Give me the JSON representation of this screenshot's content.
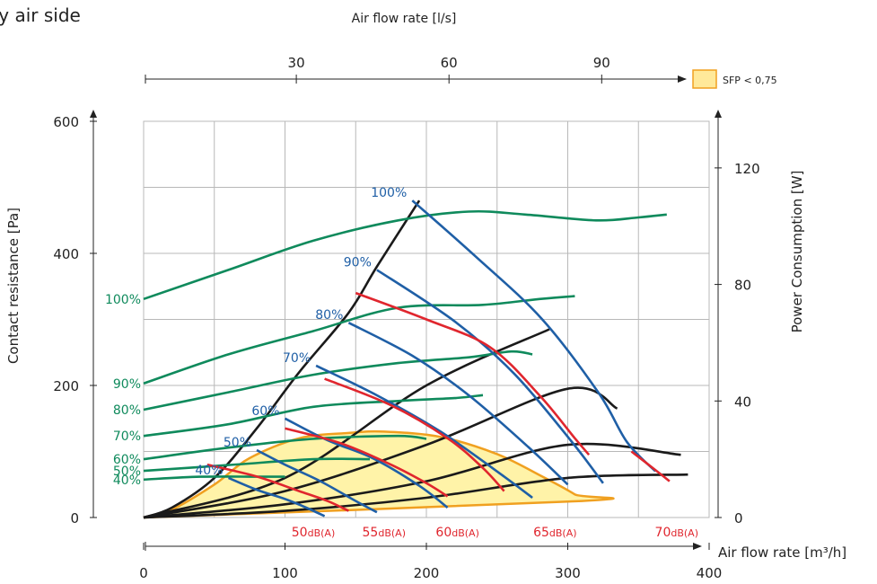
{
  "chart_data": {
    "type": "line",
    "title": "ply air side",
    "xlabel": "Air flow rate [m³/h]",
    "x_ticks": [
      "0",
      "100",
      "200",
      "300",
      "400"
    ],
    "xlim": [
      0,
      400
    ],
    "top_axis_label": "Air flow rate [l/s]",
    "top_ticks": [
      "30",
      "60",
      "90"
    ],
    "top_tick_values": [
      30,
      60,
      90
    ],
    "ylabel": "Contact resistance [Pa]",
    "y_ticks": [
      "0",
      "200",
      "400",
      "600"
    ],
    "ylim": [
      0,
      600
    ],
    "y2label": "Power Consumption [W]",
    "y2_ticks": [
      "0",
      "40",
      "80",
      "120"
    ],
    "y2lim": [
      0,
      136
    ],
    "grid": true,
    "legend": {
      "label": "SFP < 0,75",
      "color": "#ffe99a",
      "edge": "#f0a020",
      "position": "top-right"
    },
    "colors": {
      "pressure": "#1f5fa6",
      "power": "#0f8a5c",
      "noise": "#e0262e",
      "system": "#1a1a1a",
      "sfp_fill": "#fff3a8",
      "sfp_edge": "#f0a020"
    },
    "sfp_region": [
      [
        0,
        0
      ],
      [
        20,
        12
      ],
      [
        50,
        50
      ],
      [
        75,
        90
      ],
      [
        110,
        120
      ],
      [
        145,
        128
      ],
      [
        170,
        130
      ],
      [
        210,
        122
      ],
      [
        250,
        96
      ],
      [
        282,
        62
      ],
      [
        305,
        35
      ],
      [
        310,
        25
      ],
      [
        0,
        0
      ]
    ],
    "pressure_series": [
      {
        "name": "100%",
        "points": [
          [
            190,
            480
          ],
          [
            235,
            395
          ],
          [
            282,
            300
          ],
          [
            322,
            188
          ],
          [
            342,
            114
          ],
          [
            362,
            70
          ]
        ]
      },
      {
        "name": "90%",
        "points": [
          [
            165,
            375
          ],
          [
            220,
            297
          ],
          [
            262,
            218
          ],
          [
            302,
            117
          ],
          [
            325,
            52
          ]
        ]
      },
      {
        "name": "80%",
        "points": [
          [
            145,
            295
          ],
          [
            190,
            245
          ],
          [
            230,
            185
          ],
          [
            272,
            107
          ],
          [
            300,
            50
          ]
        ]
      },
      {
        "name": "70%",
        "points": [
          [
            122,
            230
          ],
          [
            165,
            185
          ],
          [
            210,
            130
          ],
          [
            255,
            62
          ],
          [
            275,
            30
          ]
        ]
      },
      {
        "name": "60%",
        "points": [
          [
            100,
            150
          ],
          [
            130,
            117
          ],
          [
            162,
            90
          ],
          [
            195,
            48
          ],
          [
            215,
            15
          ]
        ]
      },
      {
        "name": "50%",
        "points": [
          [
            80,
            102
          ],
          [
            100,
            80
          ],
          [
            125,
            55
          ],
          [
            150,
            25
          ],
          [
            165,
            8
          ]
        ]
      },
      {
        "name": "40%",
        "points": [
          [
            60,
            60
          ],
          [
            80,
            42
          ],
          [
            100,
            28
          ],
          [
            115,
            15
          ],
          [
            128,
            2
          ]
        ]
      }
    ],
    "power_series": [
      {
        "name": "100%",
        "points": [
          [
            0,
            75
          ],
          [
            60,
            85
          ],
          [
            120,
            95
          ],
          [
            180,
            102
          ],
          [
            230,
            105
          ],
          [
            270,
            104
          ],
          [
            320,
            102
          ],
          [
            350,
            103
          ],
          [
            370,
            104
          ]
        ]
      },
      {
        "name": "90%",
        "points": [
          [
            0,
            46
          ],
          [
            60,
            56
          ],
          [
            120,
            64
          ],
          [
            180,
            72
          ],
          [
            240,
            73
          ],
          [
            280,
            75
          ],
          [
            305,
            76
          ]
        ]
      },
      {
        "name": "80%",
        "points": [
          [
            0,
            37
          ],
          [
            60,
            43
          ],
          [
            120,
            49
          ],
          [
            180,
            53
          ],
          [
            230,
            55
          ],
          [
            260,
            57
          ],
          [
            275,
            56
          ]
        ]
      },
      {
        "name": "70%",
        "points": [
          [
            0,
            28
          ],
          [
            60,
            32
          ],
          [
            120,
            38
          ],
          [
            180,
            40
          ],
          [
            220,
            41
          ],
          [
            240,
            42
          ]
        ]
      },
      {
        "name": "60%",
        "points": [
          [
            0,
            20
          ],
          [
            60,
            24
          ],
          [
            120,
            27
          ],
          [
            180,
            28
          ],
          [
            200,
            27
          ]
        ]
      },
      {
        "name": "50%",
        "points": [
          [
            0,
            16
          ],
          [
            60,
            18
          ],
          [
            120,
            20
          ],
          [
            160,
            20
          ]
        ]
      },
      {
        "name": "40%",
        "points": [
          [
            0,
            13
          ],
          [
            40,
            14
          ],
          [
            80,
            14
          ],
          [
            100,
            14
          ]
        ]
      }
    ],
    "noise_series": [
      {
        "name": "50dB(A)",
        "points": [
          [
            45,
            80
          ],
          [
            80,
            62
          ],
          [
            110,
            40
          ],
          [
            130,
            25
          ],
          [
            145,
            10
          ]
        ]
      },
      {
        "name": "55dB(A)",
        "points": [
          [
            100,
            135
          ],
          [
            140,
            112
          ],
          [
            175,
            80
          ],
          [
            200,
            52
          ],
          [
            215,
            32
          ]
        ]
      },
      {
        "name": "60dB(A)",
        "points": [
          [
            128,
            210
          ],
          [
            175,
            170
          ],
          [
            215,
            120
          ],
          [
            240,
            75
          ],
          [
            255,
            40
          ]
        ]
      },
      {
        "name": "65dB(A)",
        "points": [
          [
            150,
            340
          ],
          [
            200,
            300
          ],
          [
            245,
            258
          ],
          [
            280,
            185
          ],
          [
            305,
            120
          ],
          [
            315,
            95
          ]
        ]
      },
      {
        "name": "70dB(A)",
        "points": [
          [
            345,
            100
          ],
          [
            362,
            72
          ],
          [
            372,
            55
          ]
        ]
      }
    ],
    "system_curves": [
      [
        [
          0,
          0
        ],
        [
          20,
          15
        ],
        [
          50,
          60
        ],
        [
          80,
          135
        ],
        [
          110,
          220
        ],
        [
          145,
          310
        ],
        [
          165,
          380
        ],
        [
          195,
          480
        ]
      ],
      [
        [
          0,
          0
        ],
        [
          100,
          60
        ],
        [
          200,
          200
        ],
        [
          287,
          285
        ]
      ],
      [
        [
          0,
          0
        ],
        [
          100,
          40
        ],
        [
          200,
          110
        ],
        [
          300,
          195
        ],
        [
          335,
          165
        ]
      ],
      [
        [
          0,
          0
        ],
        [
          100,
          20
        ],
        [
          200,
          55
        ],
        [
          300,
          110
        ],
        [
          380,
          95
        ]
      ],
      [
        [
          0,
          0
        ],
        [
          100,
          10
        ],
        [
          200,
          30
        ],
        [
          300,
          60
        ],
        [
          385,
          65
        ]
      ]
    ],
    "noise_labels": [
      "50dB(A)",
      "55dB(A)",
      "60dB(A)",
      "65dB(A)",
      "70dB(A)"
    ],
    "noise_label_x": [
      120,
      170,
      222,
      291,
      377
    ],
    "pressure_labels": [
      "100%",
      "90%",
      "80%",
      "70%",
      "60%",
      "50%",
      "40%"
    ],
    "power_labels": [
      "100%",
      "90%",
      "80%",
      "70%",
      "60%",
      "50%",
      "40%"
    ]
  }
}
